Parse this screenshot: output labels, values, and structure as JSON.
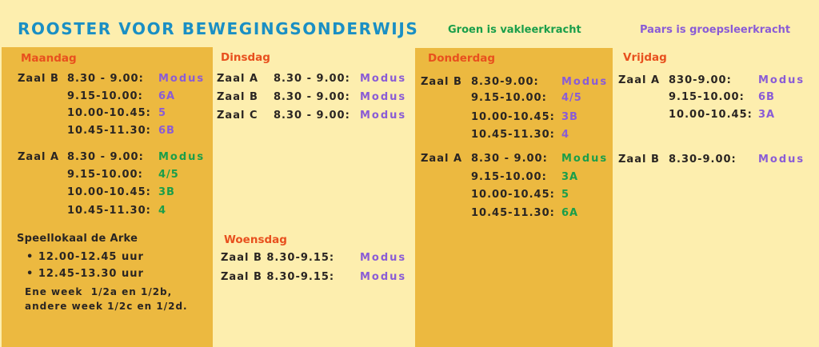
{
  "title": "ROOSTER VOOR BEWEGINGSONDERWIJS",
  "legend": {
    "green": "Groen is vakleerkracht",
    "purple": "Paars is groepsleerkracht"
  },
  "colors": {
    "background": "#fdeeae",
    "panel": "#ecb940",
    "day": "#e8501e",
    "purple": "#8a5cd6",
    "green": "#1a9e4a",
    "title": "#1a8fc4"
  },
  "days": {
    "maandag": {
      "name": "Maandag",
      "rows": [
        {
          "zaal": "Zaal B",
          "time": "8.30 - 9.00:",
          "value": "Modus",
          "color": "purple"
        },
        {
          "zaal": "",
          "time": "9.15-10.00:",
          "value": "6A",
          "color": "purple"
        },
        {
          "zaal": "",
          "time": "10.00-10.45:",
          "value": "5",
          "color": "purple"
        },
        {
          "zaal": "",
          "time": "10.45-11.30:",
          "value": "6B",
          "color": "purple"
        },
        {
          "zaal": "Zaal A",
          "time": "8.30 - 9.00:",
          "value": "Modus",
          "color": "green"
        },
        {
          "zaal": "",
          "time": "9.15-10.00:",
          "value": "4/5",
          "color": "green"
        },
        {
          "zaal": "",
          "time": "10.00-10.45:",
          "value": "3B",
          "color": "green"
        },
        {
          "zaal": "",
          "time": "10.45-11.30:",
          "value": "4",
          "color": "green"
        }
      ]
    },
    "dinsdag": {
      "name": "Dinsdag",
      "rows": [
        {
          "zaal": "Zaal A",
          "time": "8.30 - 9.00:",
          "value": "Modus",
          "color": "purple"
        },
        {
          "zaal": "Zaal B",
          "time": "8.30 - 9.00:",
          "value": "Modus",
          "color": "purple"
        },
        {
          "zaal": "Zaal C",
          "time": "8.30 - 9.00:",
          "value": "Modus",
          "color": "purple"
        }
      ]
    },
    "woensdag": {
      "name": "Woensdag",
      "rows": [
        {
          "zaal": "Zaal B 8.30-9.15:",
          "time": "",
          "value": "Modus",
          "color": "purple"
        },
        {
          "zaal": "Zaal B 8.30-9.15:",
          "time": "",
          "value": "Modus",
          "color": "purple"
        }
      ]
    },
    "donderdag": {
      "name": "Donderdag",
      "rows": [
        {
          "zaal": "Zaal B",
          "time": "8.30-9.00:",
          "value": "Modus",
          "color": "purple"
        },
        {
          "zaal": "",
          "time": "9.15-10.00:",
          "value": "4/5",
          "color": "purple"
        },
        {
          "zaal": "",
          "time": "10.00-10.45:",
          "value": "3B",
          "color": "purple"
        },
        {
          "zaal": "",
          "time": "10.45-11.30:",
          "value": "4",
          "color": "purple"
        },
        {
          "zaal": "Zaal A",
          "time": "8.30 - 9.00:",
          "value": "Modus",
          "color": "green"
        },
        {
          "zaal": "",
          "time": "9.15-10.00:",
          "value": "3A",
          "color": "green"
        },
        {
          "zaal": "",
          "time": "10.00-10.45:",
          "value": "5",
          "color": "green"
        },
        {
          "zaal": "",
          "time": "10.45-11.30:",
          "value": "6A",
          "color": "green"
        }
      ]
    },
    "vrijdag": {
      "name": "Vrijdag",
      "rows": [
        {
          "zaal": "Zaal A",
          "time": "830-9.00:",
          "value": "Modus",
          "color": "purple"
        },
        {
          "zaal": "",
          "time": "9.15-10.00:",
          "value": "6B",
          "color": "purple"
        },
        {
          "zaal": "",
          "time": "10.00-10.45:",
          "value": "3A",
          "color": "purple"
        },
        {
          "zaal": "Zaal B",
          "time": "8.30-9.00:",
          "value": "Modus",
          "color": "purple"
        }
      ]
    }
  },
  "speellokaal": {
    "heading": "Speellokaal de Arke",
    "slots": [
      "12.00-12.45 uur",
      "12.45-13.30 uur"
    ],
    "note": [
      "Ene week  1/2a en 1/2b,",
      "andere week 1/2c en 1/2d."
    ]
  }
}
